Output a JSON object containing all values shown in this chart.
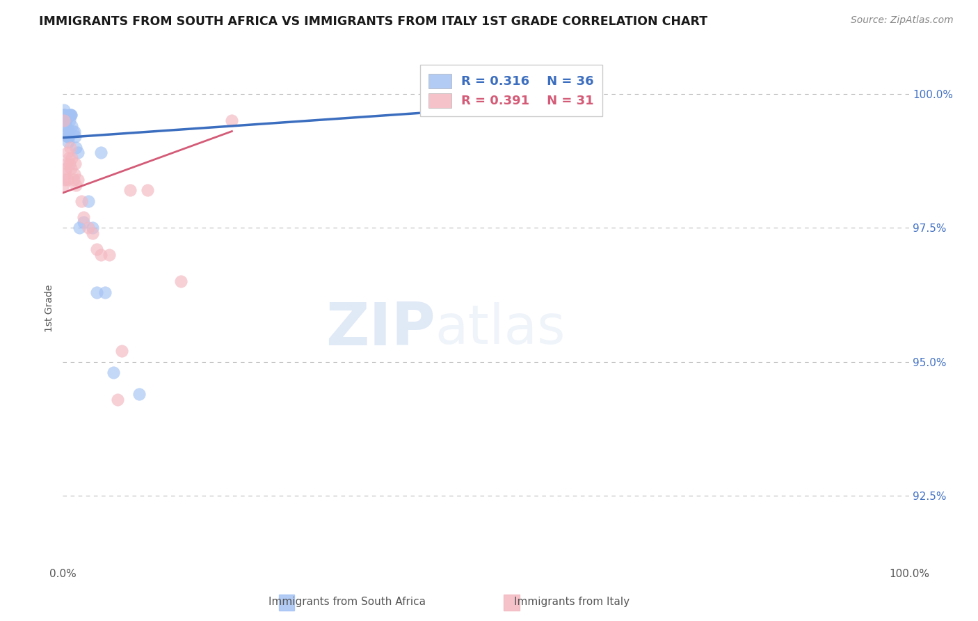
{
  "title": "IMMIGRANTS FROM SOUTH AFRICA VS IMMIGRANTS FROM ITALY 1ST GRADE CORRELATION CHART",
  "source_text": "Source: ZipAtlas.com",
  "ylabel": "1st Grade",
  "x_min": 0.0,
  "x_max": 100.0,
  "y_min": 91.2,
  "y_max": 100.8,
  "y_ticks": [
    92.5,
    95.0,
    97.5,
    100.0
  ],
  "x_tick_labels": [
    "0.0%",
    "100.0%"
  ],
  "y_tick_labels": [
    "92.5%",
    "95.0%",
    "97.5%",
    "100.0%"
  ],
  "blue_color": "#a4c2f4",
  "pink_color": "#f4b8c1",
  "blue_line_color": "#3c6ebf",
  "pink_line_color": "#d45b77",
  "legend_R_blue": "R = 0.316",
  "legend_N_blue": "N = 36",
  "legend_R_pink": "R = 0.391",
  "legend_N_pink": "N = 31",
  "legend_label_blue": "Immigrants from South Africa",
  "legend_label_pink": "Immigrants from Italy",
  "watermark_zip": "ZIP",
  "watermark_atlas": "atlas",
  "background_color": "#ffffff",
  "scatter_blue_x": [
    0.1,
    0.15,
    0.2,
    0.2,
    0.25,
    0.3,
    0.35,
    0.4,
    0.45,
    0.5,
    0.55,
    0.6,
    0.65,
    0.7,
    0.75,
    0.8,
    0.85,
    0.9,
    0.95,
    1.0,
    1.1,
    1.2,
    1.4,
    1.5,
    1.6,
    1.8,
    2.0,
    2.5,
    3.0,
    3.5,
    4.0,
    4.5,
    5.0,
    6.0,
    9.0,
    55.0
  ],
  "scatter_blue_y": [
    99.5,
    99.6,
    99.6,
    99.7,
    99.6,
    99.5,
    99.4,
    99.5,
    99.4,
    99.3,
    99.2,
    99.2,
    99.1,
    99.3,
    99.2,
    99.6,
    99.5,
    99.6,
    99.6,
    99.6,
    99.4,
    99.3,
    99.3,
    99.2,
    99.0,
    98.9,
    97.5,
    97.6,
    98.0,
    97.5,
    96.3,
    98.9,
    96.3,
    94.8,
    94.4,
    99.8
  ],
  "scatter_pink_x": [
    0.1,
    0.2,
    0.25,
    0.3,
    0.4,
    0.5,
    0.55,
    0.6,
    0.7,
    0.8,
    0.9,
    1.0,
    1.1,
    1.3,
    1.4,
    1.5,
    1.6,
    1.8,
    2.2,
    2.5,
    3.0,
    3.5,
    4.0,
    4.5,
    5.5,
    6.5,
    7.0,
    8.0,
    10.0,
    14.0,
    20.0
  ],
  "scatter_pink_y": [
    98.3,
    99.5,
    98.4,
    98.5,
    98.6,
    98.7,
    98.4,
    98.9,
    98.8,
    98.7,
    99.0,
    98.6,
    98.8,
    98.4,
    98.5,
    98.7,
    98.3,
    98.4,
    98.0,
    97.7,
    97.5,
    97.4,
    97.1,
    97.0,
    97.0,
    94.3,
    95.2,
    98.2,
    98.2,
    96.5,
    99.5
  ],
  "trend_blue_x0": 0.0,
  "trend_blue_y0": 99.18,
  "trend_blue_x1": 55.0,
  "trend_blue_y1": 99.78,
  "trend_pink_x0": 0.0,
  "trend_pink_y0": 98.15,
  "trend_pink_x1": 20.0,
  "trend_pink_y1": 99.3
}
